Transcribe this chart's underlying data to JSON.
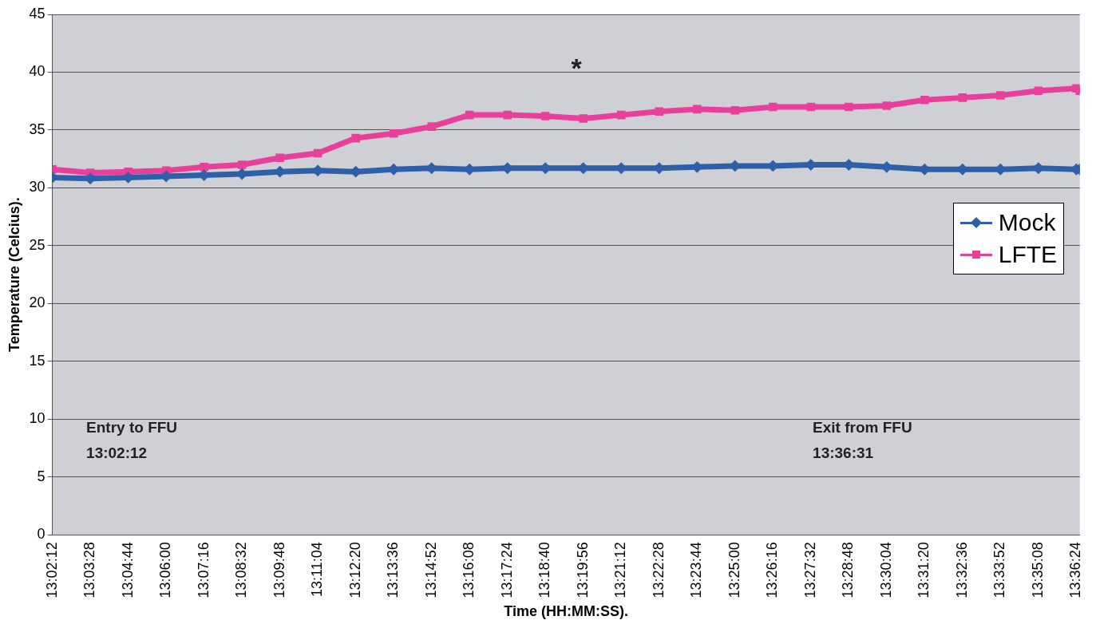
{
  "chart_data": {
    "type": "line",
    "xlabel": "Time (HH:MM:SS).",
    "ylabel": "Temperature (Celcius).",
    "x": [
      13.03667,
      13.05778,
      13.07889,
      13.1,
      13.12111,
      13.14222,
      13.16333,
      13.18444,
      13.20556,
      13.22667,
      13.24778,
      13.26889,
      13.29,
      13.31111,
      13.33222,
      13.35333,
      13.37444,
      13.39556,
      13.41667,
      13.43778,
      13.45889,
      13.48,
      13.50111,
      13.52222,
      13.54333,
      13.56444,
      13.58556,
      13.60667,
      13.60861
    ],
    "series": [
      {
        "name": "Mock",
        "color": "#2e5fa8",
        "marker": "diamond",
        "values": [
          30.9,
          30.8,
          30.9,
          31.0,
          31.1,
          31.2,
          31.4,
          31.5,
          31.4,
          31.6,
          31.7,
          31.6,
          31.7,
          31.7,
          31.7,
          31.7,
          31.7,
          31.8,
          31.9,
          31.9,
          32.0,
          32.0,
          31.8,
          31.6,
          31.6,
          31.6,
          31.7,
          31.6,
          31.6
        ]
      },
      {
        "name": "LFTE",
        "color": "#e8409a",
        "marker": "square",
        "values": [
          31.6,
          31.3,
          31.4,
          31.5,
          31.8,
          32.0,
          32.6,
          33.0,
          34.3,
          34.7,
          35.3,
          36.3,
          36.3,
          36.2,
          36.0,
          36.3,
          36.6,
          36.8,
          36.7,
          37.0,
          37.0,
          37.0,
          37.1,
          37.6,
          37.8,
          38.0,
          38.4,
          38.6,
          38.4
        ]
      }
    ],
    "xlim": [
      13.03667,
      13.60861
    ],
    "xticks": [
      {
        "value": 13.03667,
        "label": "13:02:12"
      },
      {
        "value": 13.05778,
        "label": "13:03:28"
      },
      {
        "value": 13.07889,
        "label": "13:04:44"
      },
      {
        "value": 13.1,
        "label": "13:06:00"
      },
      {
        "value": 13.12111,
        "label": "13:07:16"
      },
      {
        "value": 13.14222,
        "label": "13:08:32"
      },
      {
        "value": 13.16333,
        "label": "13:09:48"
      },
      {
        "value": 13.18444,
        "label": "13:11:04"
      },
      {
        "value": 13.20556,
        "label": "13:12:20"
      },
      {
        "value": 13.22667,
        "label": "13:13:36"
      },
      {
        "value": 13.24778,
        "label": "13:14:52"
      },
      {
        "value": 13.26889,
        "label": "13:16:08"
      },
      {
        "value": 13.29,
        "label": "13:17:24"
      },
      {
        "value": 13.31111,
        "label": "13:18:40"
      },
      {
        "value": 13.33222,
        "label": "13:19:56"
      },
      {
        "value": 13.35333,
        "label": "13:21:12"
      },
      {
        "value": 13.37444,
        "label": "13:22:28"
      },
      {
        "value": 13.39556,
        "label": "13:23:44"
      },
      {
        "value": 13.41667,
        "label": "13:25:00"
      },
      {
        "value": 13.43778,
        "label": "13:26:16"
      },
      {
        "value": 13.45889,
        "label": "13:27:32"
      },
      {
        "value": 13.48,
        "label": "13:28:48"
      },
      {
        "value": 13.50111,
        "label": "13:30:04"
      },
      {
        "value": 13.52222,
        "label": "13:31:20"
      },
      {
        "value": 13.54333,
        "label": "13:32:36"
      },
      {
        "value": 13.56444,
        "label": "13:33:52"
      },
      {
        "value": 13.58556,
        "label": "13:35:08"
      },
      {
        "value": 13.60667,
        "label": "13:36:24"
      }
    ],
    "ylim": [
      0,
      45
    ],
    "yticks": [
      0,
      5,
      10,
      15,
      20,
      25,
      30,
      35,
      40,
      45
    ],
    "grid": "y",
    "legend": "right",
    "line_style": "solid",
    "annotations": [
      "*",
      "Entry to FFU\n13:02:12",
      "Exit from FFU\n13:36:31"
    ]
  }
}
